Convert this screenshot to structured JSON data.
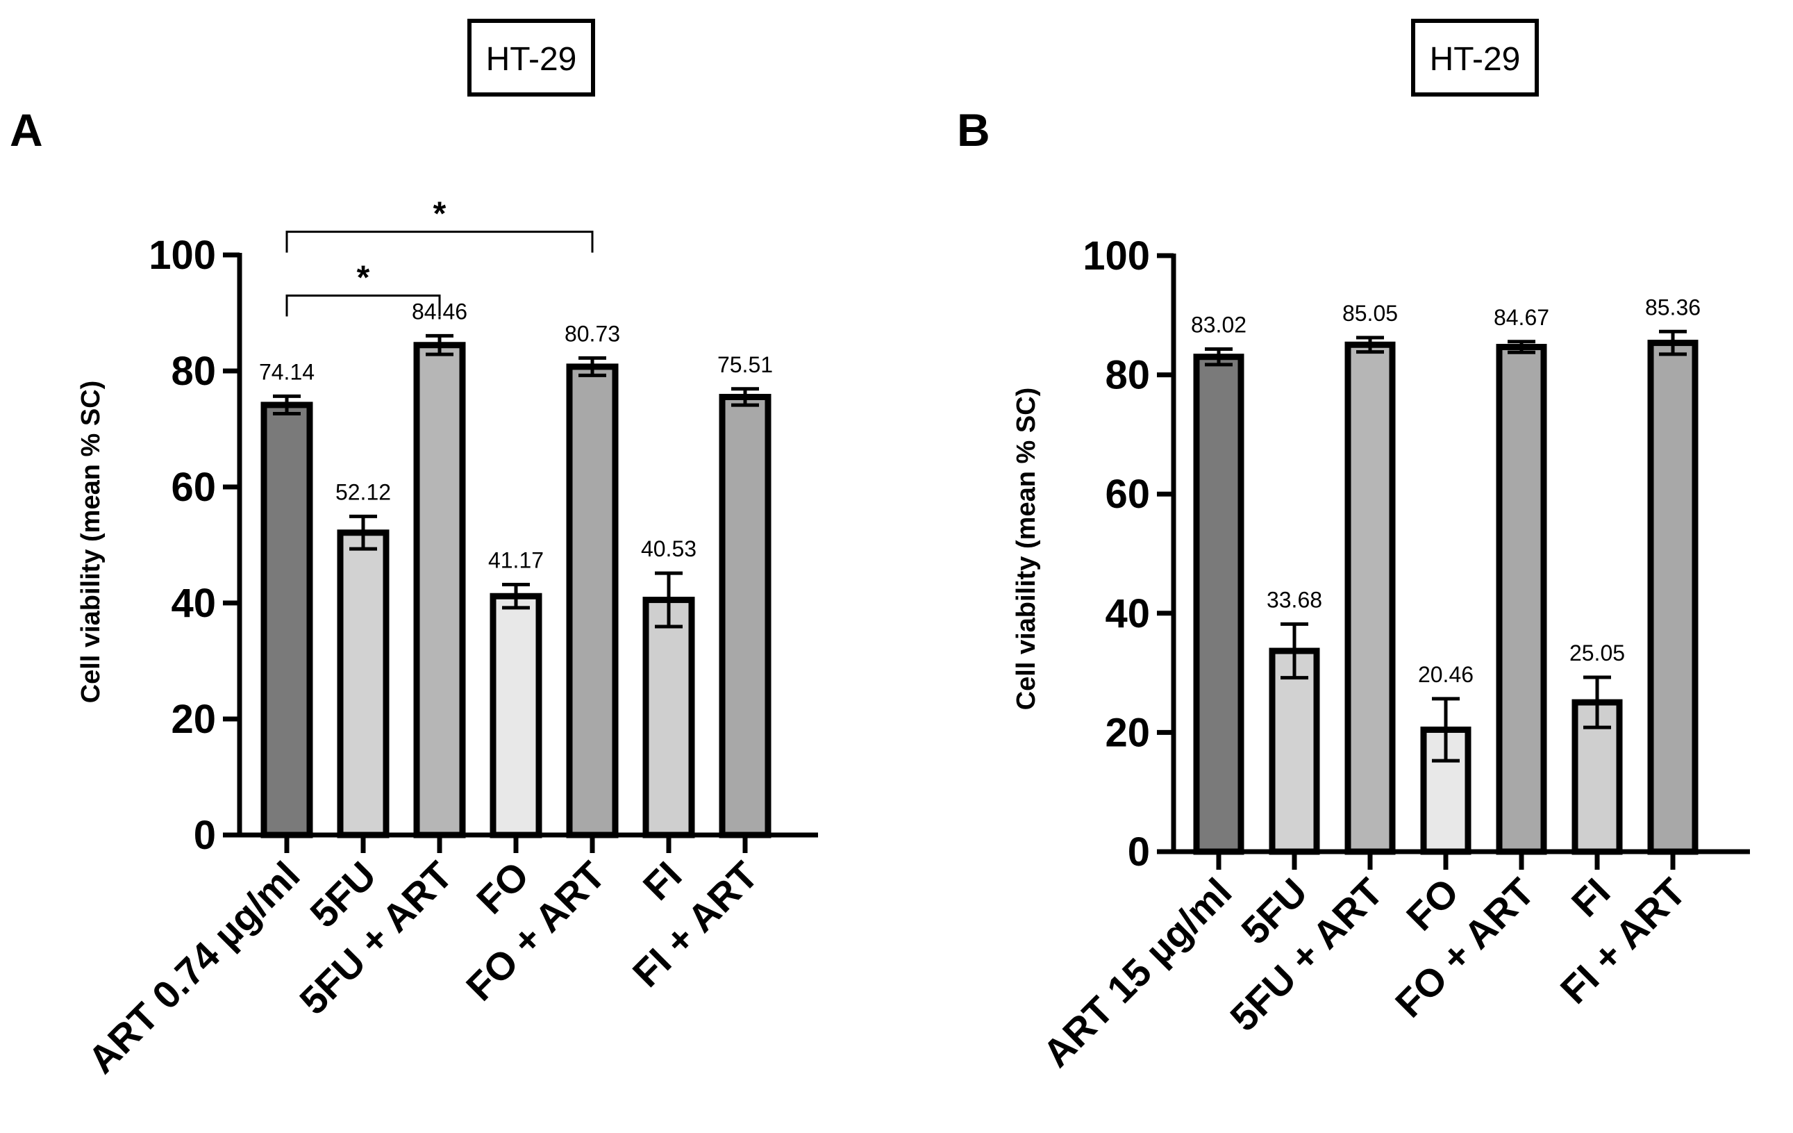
{
  "colors": {
    "axis": "#000000",
    "bar_stroke": "#000000",
    "dark_gray": "#7a7a7a",
    "light_gray": "#d2d2d2",
    "mid_gray": "#b6b6b6",
    "lighter_gray": "#e8e8e8",
    "panel_fill": "#ffffff"
  },
  "chart_data": [
    {
      "type": "bar",
      "panel_letter": "A",
      "title": "HT-29",
      "ylabel": "Cell viability (mean % SC)",
      "xlabel": "",
      "ylim": [
        0,
        100
      ],
      "yticks": [
        0,
        20,
        40,
        60,
        80,
        100
      ],
      "grid": false,
      "categories": [
        "ART 0.74 µg/ml",
        "5FU",
        "5FU + ART",
        "FO",
        "FO + ART",
        "FI",
        "FI + ART"
      ],
      "values": [
        74.14,
        52.12,
        84.46,
        41.17,
        80.73,
        40.53,
        75.51
      ],
      "value_labels": [
        "74.14",
        "52.12",
        "84.46",
        "41.17",
        "80.73",
        "40.53",
        "75.51"
      ],
      "errors": [
        1.5,
        2.8,
        1.6,
        2.0,
        1.5,
        4.6,
        1.4
      ],
      "bar_colors": [
        "#7a7a7a",
        "#d2d2d2",
        "#b6b6b6",
        "#e8e8e8",
        "#a8a8a8",
        "#cfcfcf",
        "#a8a8a8"
      ],
      "significance": [
        {
          "from": 0,
          "to": 2,
          "label": "*",
          "level": 93
        },
        {
          "from": 0,
          "to": 4,
          "label": "*",
          "level": 104
        }
      ]
    },
    {
      "type": "bar",
      "panel_letter": "B",
      "title": "HT-29",
      "ylabel": "Cell viability (mean % SC)",
      "xlabel": "",
      "ylim": [
        0,
        100
      ],
      "yticks": [
        0,
        20,
        40,
        60,
        80,
        100
      ],
      "grid": false,
      "categories": [
        "ART 15 µg/ml",
        "5FU",
        "5FU + ART",
        "FO",
        "FO + ART",
        "FI",
        "FI + ART"
      ],
      "values": [
        83.02,
        33.68,
        85.05,
        20.46,
        84.67,
        25.05,
        85.36
      ],
      "value_labels": [
        "83.02",
        "33.68",
        "85.05",
        "20.46",
        "84.67",
        "25.05",
        "85.36"
      ],
      "errors": [
        1.3,
        4.5,
        1.2,
        5.2,
        0.9,
        4.2,
        1.9
      ],
      "bar_colors": [
        "#7a7a7a",
        "#d2d2d2",
        "#b6b6b6",
        "#e8e8e8",
        "#a8a8a8",
        "#cfcfcf",
        "#a8a8a8"
      ],
      "significance": []
    }
  ]
}
